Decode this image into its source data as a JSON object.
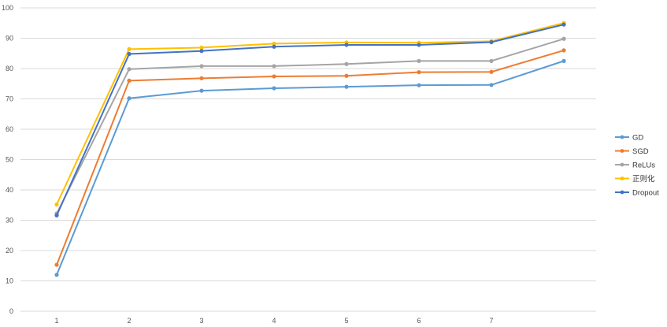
{
  "chart_data": {
    "type": "line",
    "title": "",
    "xlabel": "",
    "ylabel": "",
    "x": [
      1,
      2,
      3,
      4,
      5,
      6,
      7,
      8
    ],
    "x_tick_labels": [
      "1",
      "2",
      "3",
      "4",
      "5",
      "6",
      "7",
      ""
    ],
    "y_ticks": [
      0,
      10,
      20,
      30,
      40,
      50,
      60,
      70,
      80,
      90,
      100
    ],
    "ylim": [
      0,
      100
    ],
    "grid": "horizontal",
    "legend_position": "right",
    "series": [
      {
        "name": "GD",
        "color": "#5b9bd5",
        "values": [
          12,
          70.2,
          72.7,
          73.5,
          74,
          74.5,
          74.6,
          82.5
        ]
      },
      {
        "name": "SGD",
        "color": "#ed7d31",
        "values": [
          15.3,
          76,
          76.8,
          77.4,
          77.6,
          78.8,
          78.9,
          86
        ]
      },
      {
        "name": "ReLUs",
        "color": "#a5a5a5",
        "values": [
          32.2,
          79.8,
          80.8,
          80.8,
          81.5,
          82.5,
          82.5,
          89.8
        ]
      },
      {
        "name": "正则化",
        "color": "#ffc000",
        "values": [
          35.2,
          86.4,
          86.9,
          88.2,
          88.6,
          88.5,
          89,
          95
        ]
      },
      {
        "name": "Dropout",
        "color": "#4472c4",
        "values": [
          31.6,
          84.8,
          85.8,
          87.2,
          87.8,
          87.8,
          88.7,
          94.5
        ]
      }
    ]
  }
}
